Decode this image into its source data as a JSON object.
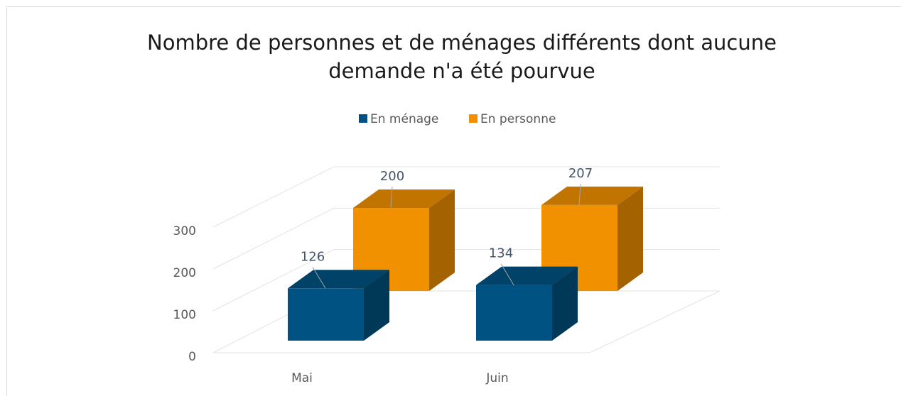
{
  "chart_data": {
    "type": "bar3d",
    "title": "Nombre de personnes et de ménages différents dont aucune demande n'a été pourvue",
    "categories": [
      "Mai",
      "Juin"
    ],
    "series": [
      {
        "name": "En ménage",
        "color": "#005282",
        "values": [
          126,
          134
        ]
      },
      {
        "name": "En personne",
        "color": "#f29100",
        "values": [
          200,
          207
        ]
      }
    ],
    "ylim": [
      0,
      300
    ],
    "yticks": [
      0,
      100,
      200,
      300
    ],
    "grid": true,
    "legend": "top"
  }
}
